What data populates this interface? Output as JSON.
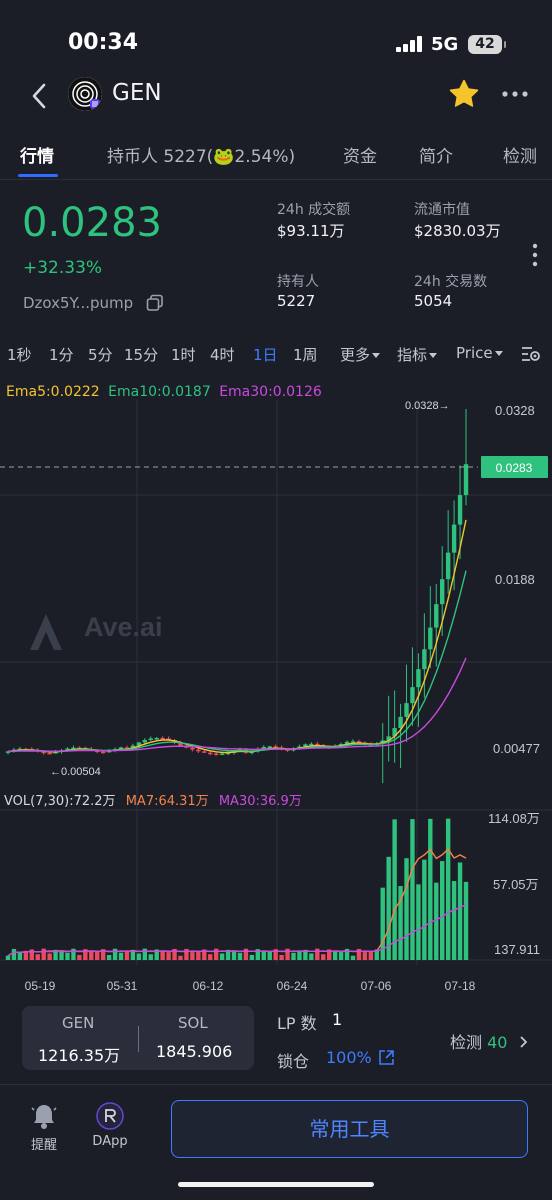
{
  "status_bar": {
    "time": "00:34",
    "network": "5G",
    "battery": "42"
  },
  "header": {
    "title": "GEN",
    "back_icon": "chevron-left-icon",
    "logo_icon": "gen-coin-logo",
    "favorite_icon": "star-icon",
    "more_icon": "more-horizontal-icon",
    "favorite_color": "#f5c32c"
  },
  "tabs": [
    {
      "label": "行情",
      "active": true
    },
    {
      "label": "持币人 5227(",
      "emoji": "🐸",
      "suffix": "2.54%)"
    },
    {
      "label": "资金"
    },
    {
      "label": "简介"
    },
    {
      "label": "检测"
    }
  ],
  "price": {
    "value": "0.0283",
    "change": "+32.33%",
    "address": "Dzox5Y...pump"
  },
  "stats": {
    "vol24h": {
      "label": "24h 成交额",
      "value": "$93.11万"
    },
    "mcap": {
      "label": "流通市值",
      "value": "$2830.03万"
    },
    "holders": {
      "label": "持有人",
      "value": "5227"
    },
    "tx24h": {
      "label": "24h 交易数",
      "value": "5054"
    }
  },
  "intervals": [
    "1秒",
    "1分",
    "5分",
    "15分",
    "1时",
    "4时",
    "1日",
    "1周",
    "更多",
    "指标",
    "Price"
  ],
  "active_interval": "1日",
  "ema": {
    "ema5": "Ema5:0.0222",
    "ema10": "Ema10:0.0187",
    "ema30": "Ema30:0.0126"
  },
  "chart_data": {
    "type": "candlestick",
    "price_axis": [
      "0.0328",
      "0.0188",
      "0.00477"
    ],
    "current_price_tag": "0.0283",
    "high_marker": "0.0328→",
    "low_marker": "←0.00504",
    "watermark": "Ave.ai",
    "volume_legend": {
      "vol": "VOL(7,30):72.2万",
      "ma7": "MA7:64.31万",
      "ma30": "MA30:36.9万"
    },
    "volume_axis": [
      "114.08万",
      "57.05万",
      "137.911"
    ],
    "x_labels": [
      "05-19",
      "05-31",
      "06-12",
      "06-24",
      "07-06",
      "07-18"
    ],
    "colors": {
      "up": "#2ec27e",
      "down": "#e84a5f",
      "ema5": "#f5c32c",
      "ema10": "#2ec27e",
      "ema30": "#c94ae0",
      "ma7": "#f5824a",
      "ma30": "#c94ae0"
    }
  },
  "bottom_info": {
    "token_a": {
      "label": "GEN",
      "value": "1216.35万"
    },
    "token_b": {
      "label": "SOL",
      "value": "1845.906"
    },
    "lp_label": "LP 数",
    "lp_value": "1",
    "lock_label": "锁仓",
    "lock_value": "100%",
    "detect_label": "检测",
    "detect_value": "40"
  },
  "bottom_nav": {
    "alert_label": "提醒",
    "dapp_label": "DApp",
    "tools_label": "常用工具"
  }
}
